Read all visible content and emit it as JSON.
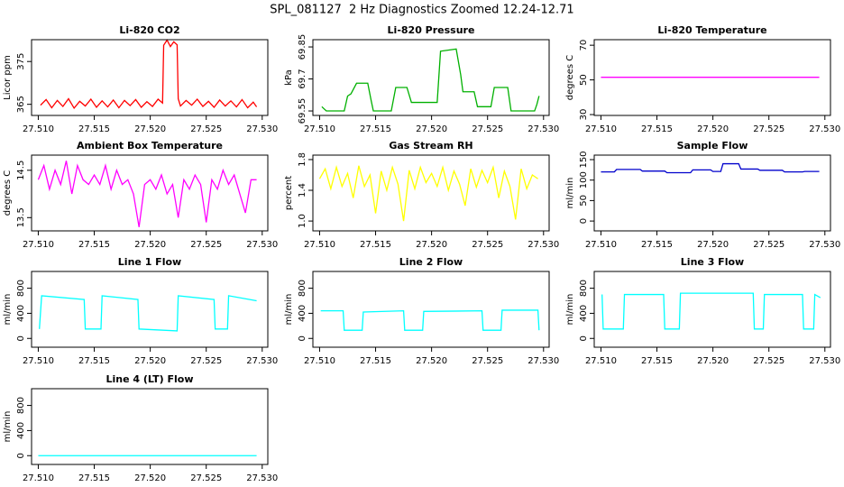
{
  "page_title": "SPL_081127  2 Hz Diagnostics Zoomed 12.24-12.71",
  "chart_data": [
    {
      "type": "line",
      "title": "Li-820 CO2",
      "ylabel": "Licor ppm",
      "color": "#ff0000",
      "x": [
        27.5102,
        27.5107,
        27.5112,
        27.5117,
        27.5122,
        27.5127,
        27.5132,
        27.5137,
        27.5142,
        27.5147,
        27.5152,
        27.5157,
        27.5162,
        27.5167,
        27.5172,
        27.5177,
        27.5182,
        27.5187,
        27.5192,
        27.5197,
        27.5202,
        27.5207,
        27.5211,
        27.5212,
        27.5215,
        27.5218,
        27.5221,
        27.5224,
        27.5225,
        27.5227,
        27.5232,
        27.5237,
        27.5242,
        27.5247,
        27.5252,
        27.5257,
        27.5262,
        27.5267,
        27.5272,
        27.5277,
        27.5282,
        27.5287,
        27.5292,
        27.5295
      ],
      "values": [
        364.8,
        366.1,
        364.2,
        365.9,
        364.5,
        366.3,
        364.1,
        365.7,
        364.6,
        366.2,
        364.3,
        365.8,
        364.4,
        366,
        364.2,
        365.9,
        364.7,
        366.1,
        364.3,
        365.6,
        364.5,
        366.2,
        365.3,
        378.8,
        380,
        378.5,
        379.6,
        378.9,
        366.3,
        364.6,
        365.9,
        364.8,
        366.2,
        364.5,
        365.7,
        364.3,
        366,
        364.6,
        365.8,
        364.4,
        366.1,
        364.2,
        365.5,
        364.4
      ],
      "xlim": [
        27.5094,
        27.5305
      ],
      "xticks": [
        {
          "value": 27.51,
          "label": "27.510"
        },
        27.515,
        {
          "value": 27.52,
          "label": "27.520"
        },
        27.525,
        {
          "value": 27.53,
          "label": "27.530"
        }
      ],
      "ylim": [
        362.4,
        380.1
      ],
      "yticks": [
        365,
        375
      ]
    },
    {
      "type": "line",
      "title": "Li-820 Pressure",
      "ylabel": "kPa",
      "color": "#00b000",
      "x": [
        27.5102,
        27.5104,
        27.5106,
        27.5122,
        27.5125,
        27.5128,
        27.5133,
        27.5143,
        27.5146,
        27.5148,
        27.5164,
        27.5168,
        27.5178,
        27.5182,
        27.5205,
        27.5208,
        27.5222,
        27.5226,
        27.5228,
        27.5238,
        27.5241,
        27.5253,
        27.5256,
        27.5268,
        27.5271,
        27.5292,
        27.5294,
        27.5296
      ],
      "values": [
        69.57,
        69.56,
        69.55,
        69.55,
        69.62,
        69.63,
        69.68,
        69.68,
        69.6,
        69.55,
        69.55,
        69.66,
        69.66,
        69.59,
        69.59,
        69.83,
        69.84,
        69.72,
        69.64,
        69.64,
        69.57,
        69.57,
        69.66,
        69.66,
        69.55,
        69.55,
        69.58,
        69.62
      ],
      "xlim": [
        27.5094,
        27.5305
      ],
      "xticks": [
        {
          "value": 27.51,
          "label": "27.510"
        },
        27.515,
        {
          "value": 27.52,
          "label": "27.520"
        },
        27.525,
        {
          "value": 27.53,
          "label": "27.530"
        }
      ],
      "ylim": [
        69.529,
        69.884
      ],
      "yticks": [
        69.55,
        69.7,
        69.85
      ]
    },
    {
      "type": "line",
      "title": "Li-820 Temperature",
      "ylabel": "degrees C",
      "color": "#ff00ff",
      "x": [
        27.51,
        27.5295
      ],
      "values": [
        51.5,
        51.5
      ],
      "xlim": [
        27.5094,
        27.5305
      ],
      "xticks": [
        {
          "value": 27.51,
          "label": "27.510"
        },
        27.515,
        {
          "value": 27.52,
          "label": "27.520"
        },
        27.525,
        {
          "value": 27.53,
          "label": "27.530"
        }
      ],
      "ylim": [
        29.5,
        73.2
      ],
      "yticks": [
        30,
        50,
        70
      ]
    },
    {
      "type": "line",
      "title": "Ambient Box Temperature",
      "ylabel": "degrees C",
      "color": "#ff00ff",
      "x": [
        27.51,
        27.5105,
        27.511,
        27.5115,
        27.512,
        27.5125,
        27.513,
        27.5135,
        27.514,
        27.5145,
        27.515,
        27.5155,
        27.516,
        27.5165,
        27.517,
        27.5175,
        27.518,
        27.5185,
        27.519,
        27.5195,
        27.52,
        27.5205,
        27.521,
        27.5215,
        27.522,
        27.5225,
        27.523,
        27.5235,
        27.524,
        27.5245,
        27.525,
        27.5255,
        27.526,
        27.5265,
        27.527,
        27.5275,
        27.528,
        27.5285,
        27.529,
        27.5295
      ],
      "values": [
        14.3,
        14.6,
        14.1,
        14.5,
        14.2,
        14.7,
        14.0,
        14.6,
        14.3,
        14.2,
        14.4,
        14.2,
        14.6,
        14.1,
        14.5,
        14.2,
        14.3,
        14.0,
        13.3,
        14.2,
        14.3,
        14.1,
        14.4,
        14.0,
        14.2,
        13.5,
        14.3,
        14.1,
        14.4,
        14.2,
        13.4,
        14.3,
        14.1,
        14.5,
        14.2,
        14.4,
        14.0,
        13.6,
        14.3,
        14.3
      ],
      "xlim": [
        27.5094,
        27.5305
      ],
      "xticks": [
        {
          "value": 27.51,
          "label": "27.510"
        },
        27.515,
        {
          "value": 27.52,
          "label": "27.520"
        },
        27.525,
        {
          "value": 27.53,
          "label": "27.530"
        }
      ],
      "ylim": [
        13.22,
        14.82
      ],
      "yticks": [
        13.5,
        14.5
      ]
    },
    {
      "type": "line",
      "title": "Gas Stream RH",
      "ylabel": "percent",
      "color": "#ffff00",
      "x": [
        27.51,
        27.5105,
        27.511,
        27.5115,
        27.512,
        27.5125,
        27.513,
        27.5135,
        27.514,
        27.5145,
        27.515,
        27.5155,
        27.516,
        27.5165,
        27.517,
        27.5175,
        27.518,
        27.5185,
        27.519,
        27.5195,
        27.52,
        27.5205,
        27.521,
        27.5215,
        27.522,
        27.5225,
        27.523,
        27.5235,
        27.524,
        27.5245,
        27.525,
        27.5255,
        27.526,
        27.5265,
        27.527,
        27.5275,
        27.528,
        27.5285,
        27.529,
        27.5295
      ],
      "values": [
        1.55,
        1.68,
        1.42,
        1.7,
        1.45,
        1.62,
        1.3,
        1.72,
        1.45,
        1.6,
        1.1,
        1.65,
        1.4,
        1.7,
        1.48,
        1.0,
        1.66,
        1.42,
        1.7,
        1.5,
        1.62,
        1.45,
        1.7,
        1.4,
        1.65,
        1.48,
        1.2,
        1.68,
        1.44,
        1.66,
        1.5,
        1.7,
        1.3,
        1.65,
        1.45,
        1.02,
        1.68,
        1.42,
        1.6,
        1.55
      ],
      "xlim": [
        27.5094,
        27.5305
      ],
      "xticks": [
        {
          "value": 27.51,
          "label": "27.510"
        },
        27.515,
        {
          "value": 27.52,
          "label": "27.520"
        },
        27.525,
        {
          "value": 27.53,
          "label": "27.530"
        }
      ],
      "ylim": [
        0.872,
        1.858
      ],
      "yticks": [
        {
          "value": 1,
          "label": "1.0"
        },
        1.4,
        1.8
      ]
    },
    {
      "type": "line",
      "title": "Sample Flow",
      "ylabel": "ml/min",
      "color": "#0000cc",
      "x": [
        27.51,
        27.5112,
        27.5114,
        27.5135,
        27.5137,
        27.5157,
        27.5159,
        27.518,
        27.5182,
        27.5198,
        27.52,
        27.5207,
        27.5209,
        27.5223,
        27.5225,
        27.524,
        27.5242,
        27.5262,
        27.5264,
        27.528,
        27.5282,
        27.5295
      ],
      "values": [
        120,
        120,
        126,
        126,
        122,
        122,
        118,
        118,
        125,
        125,
        121,
        121,
        140,
        140,
        127,
        127,
        124,
        124,
        120,
        120,
        121,
        121
      ],
      "xlim": [
        27.5094,
        27.5305
      ],
      "xticks": [
        {
          "value": 27.51,
          "label": "27.510"
        },
        27.515,
        {
          "value": 27.52,
          "label": "27.520"
        },
        27.525,
        {
          "value": 27.53,
          "label": "27.530"
        }
      ],
      "ylim": [
        -24,
        161
      ],
      "yticks": [
        0,
        50,
        100,
        150
      ]
    },
    {
      "type": "line",
      "title": "Line 1 Flow",
      "ylabel": "ml/min",
      "color": "#00ffff",
      "x": [
        27.5101,
        27.5103,
        27.5141,
        27.5142,
        27.5156,
        27.5157,
        27.5189,
        27.519,
        27.5224,
        27.5225,
        27.5257,
        27.5258,
        27.5269,
        27.527,
        27.5295
      ],
      "values": [
        150,
        680,
        620,
        150,
        150,
        680,
        620,
        150,
        120,
        680,
        620,
        150,
        150,
        680,
        600
      ],
      "xlim": [
        27.5094,
        27.5305
      ],
      "xticks": [
        {
          "value": 27.51,
          "label": "27.510"
        },
        27.515,
        {
          "value": 27.52,
          "label": "27.520"
        },
        27.525,
        {
          "value": 27.53,
          "label": "27.530"
        }
      ],
      "ylim": [
        -140,
        1067
      ],
      "yticks": [
        0,
        400,
        800
      ]
    },
    {
      "type": "line",
      "title": "Line 2 Flow",
      "ylabel": "ml/min",
      "color": "#00ffff",
      "x": [
        27.5101,
        27.5121,
        27.5122,
        27.5138,
        27.5139,
        27.5175,
        27.5176,
        27.5192,
        27.5193,
        27.5245,
        27.5246,
        27.5262,
        27.5263,
        27.5295,
        27.5296
      ],
      "values": [
        440,
        440,
        130,
        130,
        420,
        440,
        130,
        130,
        430,
        440,
        130,
        130,
        450,
        450,
        130
      ],
      "xlim": [
        27.5094,
        27.5305
      ],
      "xticks": [
        {
          "value": 27.51,
          "label": "27.510"
        },
        27.515,
        {
          "value": 27.52,
          "label": "27.520"
        },
        27.525,
        {
          "value": 27.53,
          "label": "27.530"
        }
      ],
      "ylim": [
        -140,
        1067
      ],
      "yticks": [
        0,
        400,
        800
      ]
    },
    {
      "type": "line",
      "title": "Line 3 Flow",
      "ylabel": "ml/min",
      "color": "#00ffff",
      "x": [
        27.5101,
        27.5102,
        27.512,
        27.5121,
        27.5156,
        27.5157,
        27.517,
        27.5171,
        27.5236,
        27.5237,
        27.5245,
        27.5246,
        27.528,
        27.5281,
        27.529,
        27.5291,
        27.5296
      ],
      "values": [
        700,
        150,
        150,
        700,
        700,
        150,
        150,
        720,
        720,
        150,
        150,
        700,
        700,
        150,
        150,
        700,
        650
      ],
      "xlim": [
        27.5094,
        27.5305
      ],
      "xticks": [
        {
          "value": 27.51,
          "label": "27.510"
        },
        27.515,
        {
          "value": 27.52,
          "label": "27.520"
        },
        27.525,
        {
          "value": 27.53,
          "label": "27.530"
        }
      ],
      "ylim": [
        -140,
        1067
      ],
      "yticks": [
        0,
        400,
        800
      ]
    },
    {
      "type": "line",
      "title": "Line 4 (LT) Flow",
      "ylabel": "ml/min",
      "color": "#00ffff",
      "x": [
        27.51,
        27.5295
      ],
      "values": [
        0,
        0
      ],
      "xlim": [
        27.5094,
        27.5305
      ],
      "xticks": [
        {
          "value": 27.51,
          "label": "27.510"
        },
        27.515,
        {
          "value": 27.52,
          "label": "27.520"
        },
        27.525,
        {
          "value": 27.53,
          "label": "27.530"
        }
      ],
      "ylim": [
        -140,
        1067
      ],
      "yticks": [
        0,
        400,
        800
      ]
    }
  ]
}
